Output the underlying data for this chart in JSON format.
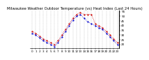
{
  "title": "Milwaukee Weather Outdoor Temperature (vs) Heat Index (Last 24 Hours)",
  "background_color": "#ffffff",
  "grid_color": "#888888",
  "hours": [
    0,
    1,
    2,
    3,
    4,
    5,
    6,
    7,
    8,
    9,
    10,
    11,
    12,
    13,
    14,
    15,
    16,
    17,
    18,
    19,
    20,
    21,
    22,
    23
  ],
  "temp": [
    32,
    30,
    27,
    24,
    22,
    20,
    18,
    22,
    28,
    34,
    40,
    46,
    50,
    52,
    48,
    44,
    42,
    40,
    38,
    36,
    32,
    28,
    24,
    20
  ],
  "heat_index": [
    34,
    32,
    29,
    26,
    24,
    22,
    20,
    24,
    30,
    36,
    42,
    48,
    52,
    54,
    52,
    52,
    52,
    42,
    40,
    38,
    34,
    30,
    26,
    22
  ],
  "ylim": [
    16,
    56
  ],
  "y_ticks": [
    20,
    25,
    30,
    35,
    40,
    45,
    50,
    55
  ],
  "x_ticks": [
    0,
    1,
    2,
    3,
    4,
    5,
    6,
    7,
    8,
    9,
    10,
    11,
    12,
    13,
    14,
    15,
    16,
    17,
    18,
    19,
    20,
    21,
    22,
    23
  ],
  "temp_color": "#0000cc",
  "heat_color": "#cc0000",
  "line_width": 0.6,
  "marker_size": 1.2,
  "title_fontsize": 3.8,
  "tick_fontsize": 3.0
}
